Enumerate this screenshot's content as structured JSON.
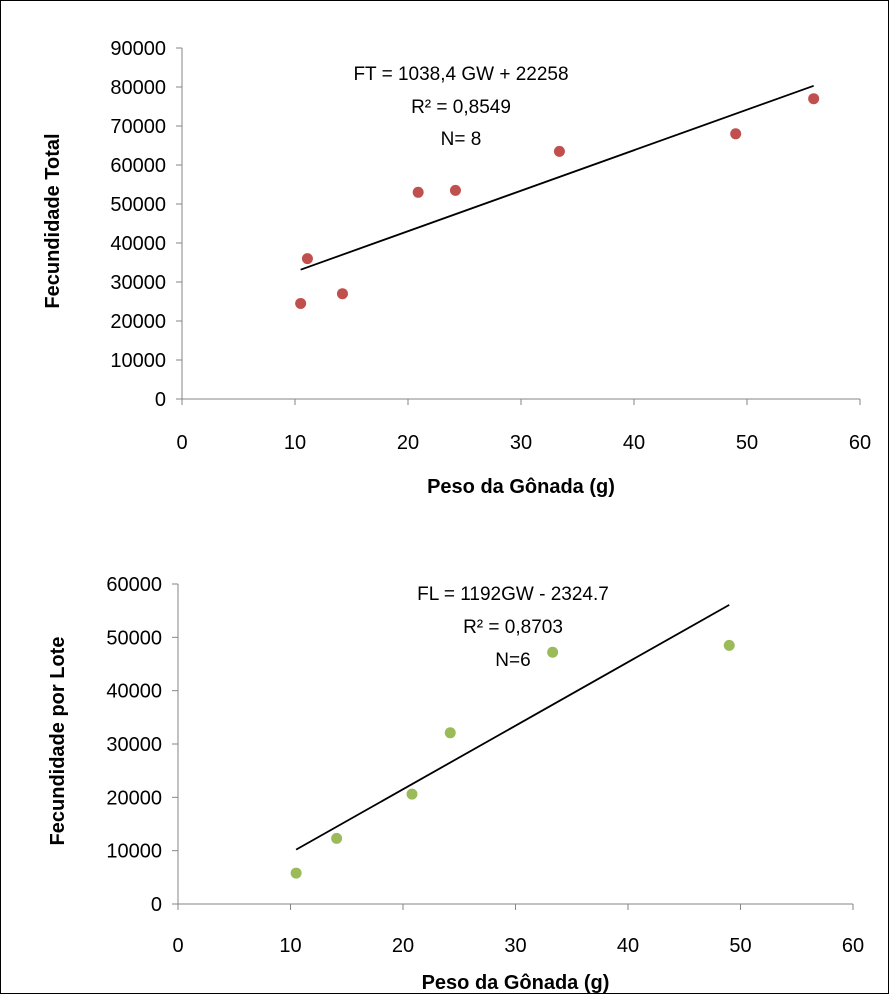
{
  "chart_data": [
    {
      "type": "scatter",
      "xlabel": "Peso da Gônada (g)",
      "ylabel": "Fecundidade Total",
      "xlim": [
        0,
        60
      ],
      "ylim": [
        0,
        90000
      ],
      "xticks": [
        0,
        10,
        20,
        30,
        40,
        50,
        60
      ],
      "yticks": [
        0,
        10000,
        20000,
        30000,
        40000,
        50000,
        60000,
        70000,
        80000,
        90000
      ],
      "grid": false,
      "marker_color": "#c0504d",
      "series": [
        {
          "points": [
            {
              "x": 10.5,
              "y": 24500
            },
            {
              "x": 11.1,
              "y": 36000
            },
            {
              "x": 14.2,
              "y": 27000
            },
            {
              "x": 20.9,
              "y": 53000
            },
            {
              "x": 24.2,
              "y": 53500
            },
            {
              "x": 33.4,
              "y": 63500
            },
            {
              "x": 49.0,
              "y": 68000
            },
            {
              "x": 55.9,
              "y": 77000
            }
          ]
        }
      ],
      "trendline": {
        "slope": 1038.4,
        "intercept": 22258,
        "x_range": [
          10.5,
          55.9
        ]
      },
      "annotations": [
        "FT = 1038,4 GW  + 22258",
        "R² = 0,8549",
        "N= 8"
      ]
    },
    {
      "type": "scatter",
      "xlabel": "Peso da Gônada (g)",
      "ylabel": "Fecundidade por Lote",
      "xlim": [
        0,
        60
      ],
      "ylim": [
        0,
        60000
      ],
      "xticks": [
        0,
        10,
        20,
        30,
        40,
        50,
        60
      ],
      "yticks": [
        0,
        10000,
        20000,
        30000,
        40000,
        50000,
        60000
      ],
      "grid": false,
      "marker_color": "#9bbb59",
      "series": [
        {
          "points": [
            {
              "x": 10.5,
              "y": 5800
            },
            {
              "x": 14.1,
              "y": 12300
            },
            {
              "x": 20.8,
              "y": 20600
            },
            {
              "x": 24.2,
              "y": 32100
            },
            {
              "x": 33.3,
              "y": 47200
            },
            {
              "x": 49.0,
              "y": 48500
            }
          ]
        }
      ],
      "trendline": {
        "slope": 1192,
        "intercept": -2324.7,
        "x_range": [
          10.5,
          49.0
        ]
      },
      "annotations": [
        "FL = 1192GW - 2324.7",
        "R² = 0,8703",
        "N=6"
      ]
    }
  ]
}
